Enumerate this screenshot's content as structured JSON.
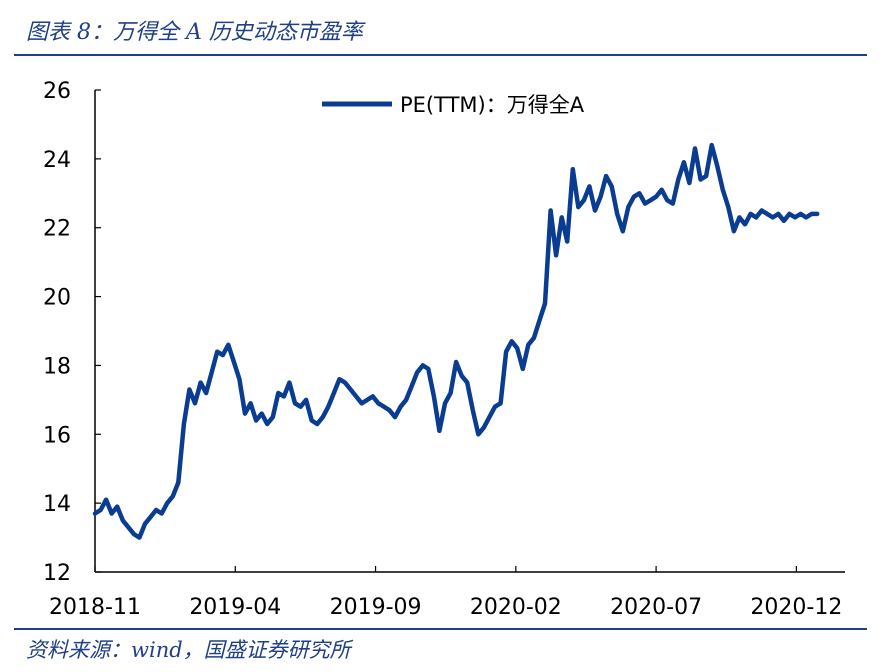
{
  "header": {
    "title": "图表 8：万得全 A 历史动态市盈率"
  },
  "footer": {
    "source": "资料来源：wind，国盛证券研究所"
  },
  "colors": {
    "line": "#0a3d91",
    "accent": "#1f3f86",
    "axis": "#000000"
  },
  "chart_data": {
    "type": "line",
    "title": "",
    "xlabel": "",
    "ylabel": "",
    "ylim": [
      12,
      26
    ],
    "yticks": [
      12,
      14,
      16,
      18,
      20,
      22,
      24,
      26
    ],
    "xticks": [
      "2018-11",
      "2019-04",
      "2019-09",
      "2020-02",
      "2020-07",
      "2020-12"
    ],
    "xlim": [
      0,
      27
    ],
    "grid": false,
    "legend_position": "top-center",
    "series": [
      {
        "name": "PE(TTM)：万得全A",
        "x": [
          0,
          0.2,
          0.4,
          0.6,
          0.8,
          1.0,
          1.2,
          1.4,
          1.6,
          1.8,
          2.0,
          2.2,
          2.4,
          2.6,
          2.8,
          3.0,
          3.2,
          3.4,
          3.6,
          3.8,
          4.0,
          4.2,
          4.4,
          4.6,
          4.8,
          5.0,
          5.2,
          5.4,
          5.6,
          5.8,
          6.0,
          6.2,
          6.4,
          6.6,
          6.8,
          7.0,
          7.2,
          7.4,
          7.6,
          7.8,
          8.0,
          8.2,
          8.4,
          8.6,
          8.8,
          9.0,
          9.2,
          9.4,
          9.6,
          9.8,
          10.0,
          10.2,
          10.4,
          10.6,
          10.8,
          11.0,
          11.2,
          11.4,
          11.6,
          11.8,
          12.0,
          12.2,
          12.4,
          12.6,
          12.8,
          13.0,
          13.2,
          13.4,
          13.6,
          13.8,
          14.0,
          14.2,
          14.4,
          14.6,
          14.8,
          15.0,
          15.2,
          15.4,
          15.6,
          15.8,
          16.0,
          16.2,
          16.4,
          16.6,
          16.8,
          17.0,
          17.2,
          17.4,
          17.6,
          17.8,
          18.0,
          18.2,
          18.4,
          18.6,
          18.8,
          19.0,
          19.2,
          19.4,
          19.6,
          19.8,
          20.0,
          20.2,
          20.4,
          20.6,
          20.8,
          21.0,
          21.2,
          21.4,
          21.6,
          21.8,
          22.0,
          22.2,
          22.4,
          22.6,
          22.8,
          23.0,
          23.2,
          23.4,
          23.6,
          23.8,
          24.0,
          24.2,
          24.4,
          24.6,
          24.8,
          25.0,
          25.2,
          25.4,
          25.6,
          25.8,
          26.0
        ],
        "values": [
          13.7,
          13.8,
          14.1,
          13.7,
          13.9,
          13.5,
          13.3,
          13.1,
          13.0,
          13.4,
          13.6,
          13.8,
          13.7,
          14.0,
          14.2,
          14.6,
          16.3,
          17.3,
          16.9,
          17.5,
          17.2,
          17.8,
          18.4,
          18.3,
          18.6,
          18.1,
          17.6,
          16.6,
          16.9,
          16.4,
          16.6,
          16.3,
          16.5,
          17.2,
          17.1,
          17.5,
          16.9,
          16.8,
          17.0,
          16.4,
          16.3,
          16.5,
          16.8,
          17.2,
          17.6,
          17.5,
          17.3,
          17.1,
          16.9,
          17.0,
          17.1,
          16.9,
          16.8,
          16.7,
          16.5,
          16.8,
          17.0,
          17.4,
          17.8,
          18.0,
          17.9,
          17.1,
          16.1,
          16.9,
          17.2,
          18.1,
          17.7,
          17.5,
          16.7,
          16.0,
          16.2,
          16.5,
          16.8,
          16.9,
          18.4,
          18.7,
          18.5,
          17.9,
          18.6,
          18.8,
          19.3,
          19.8,
          22.5,
          21.2,
          22.3,
          21.6,
          23.7,
          22.6,
          22.8,
          23.2,
          22.5,
          22.9,
          23.5,
          23.2,
          22.4,
          21.9,
          22.6,
          22.9,
          23.0,
          22.7,
          22.8,
          22.9,
          23.1,
          22.8,
          22.7,
          23.4,
          23.9,
          23.3,
          24.3,
          23.4,
          23.5,
          24.4,
          23.8,
          23.1,
          22.6,
          21.9,
          22.3,
          22.1,
          22.4,
          22.3,
          22.5,
          22.4,
          22.3,
          22.4,
          22.2,
          22.4,
          22.3,
          22.4,
          22.3,
          22.4,
          22.4
        ]
      }
    ]
  }
}
